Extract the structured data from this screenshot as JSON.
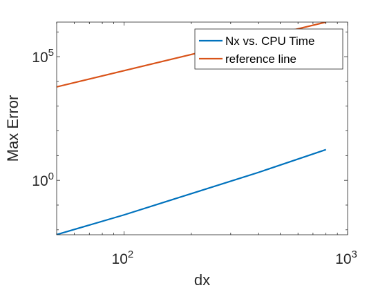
{
  "chart_data": {
    "type": "line",
    "xscale": "log",
    "yscale": "log",
    "xlabel": "dx",
    "ylabel": "Max Error",
    "xlim": [
      50,
      1000
    ],
    "ylim": [
      0.0063,
      2500000
    ],
    "grid": false,
    "legend_position": "top-right",
    "x_ticks": [
      {
        "value": 100,
        "base": "10",
        "exp": "2"
      },
      {
        "value": 1000,
        "base": "10",
        "exp": "3"
      }
    ],
    "y_ticks": [
      {
        "value": 1,
        "base": "10",
        "exp": "0"
      },
      {
        "value": 100000,
        "base": "10",
        "exp": "5"
      }
    ],
    "series": [
      {
        "name": "Nx vs. CPU Time",
        "color": "#0072BD",
        "x": [
          50,
          100,
          200,
          400,
          800
        ],
        "y": [
          0.0064,
          0.04,
          0.29,
          2.1,
          17.5
        ]
      },
      {
        "name": "reference line",
        "color": "#D95319",
        "x": [
          50,
          800
        ],
        "y": [
          6000,
          2500000
        ]
      }
    ]
  }
}
